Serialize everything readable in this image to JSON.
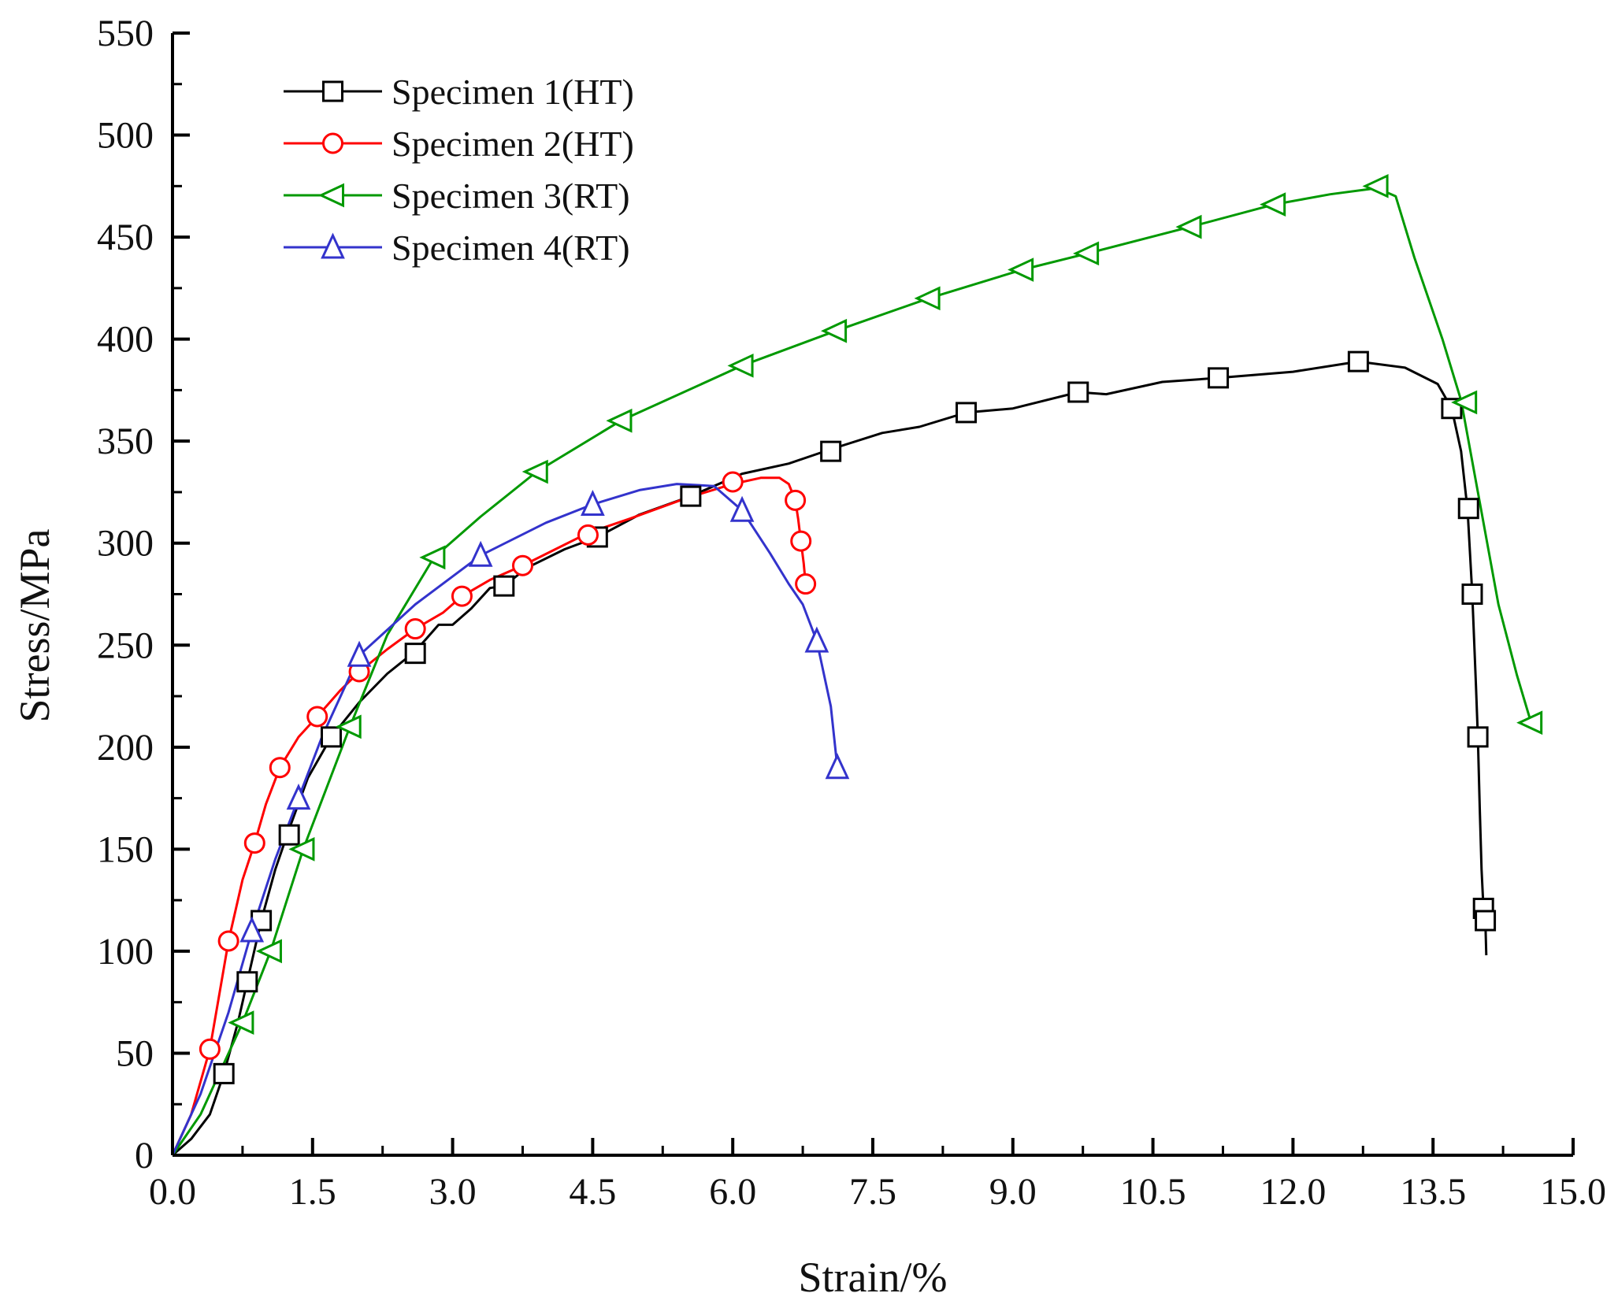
{
  "chart_data": {
    "type": "line",
    "title": "",
    "xlabel": "Strain/%",
    "ylabel": "Stress/MPa",
    "xlim": [
      0,
      15
    ],
    "ylim": [
      0,
      550
    ],
    "x_ticks": [
      "0.0",
      "1.5",
      "3.0",
      "4.5",
      "6.0",
      "7.5",
      "9.0",
      "10.5",
      "12.0",
      "13.5",
      "15.0"
    ],
    "y_ticks": [
      "0",
      "50",
      "100",
      "150",
      "200",
      "250",
      "300",
      "350",
      "400",
      "450",
      "500",
      "550"
    ],
    "grid": false,
    "legend_position": "top-left",
    "series": [
      {
        "name": "Specimen 1(HT)",
        "color": "#000000",
        "marker": "square",
        "curve": [
          [
            0.0,
            0
          ],
          [
            0.2,
            8
          ],
          [
            0.4,
            20
          ],
          [
            0.55,
            40
          ],
          [
            0.7,
            65
          ],
          [
            0.8,
            85
          ],
          [
            0.95,
            115
          ],
          [
            1.1,
            140
          ],
          [
            1.25,
            160
          ],
          [
            1.45,
            185
          ],
          [
            1.7,
            205
          ],
          [
            2.0,
            222
          ],
          [
            2.3,
            236
          ],
          [
            2.6,
            247
          ],
          [
            2.85,
            260
          ],
          [
            3.0,
            260
          ],
          [
            3.2,
            268
          ],
          [
            3.4,
            278
          ],
          [
            3.55,
            279
          ],
          [
            3.8,
            288
          ],
          [
            4.2,
            297
          ],
          [
            4.55,
            303
          ],
          [
            5.0,
            314
          ],
          [
            5.55,
            323
          ],
          [
            6.1,
            334
          ],
          [
            6.6,
            339
          ],
          [
            7.05,
            346
          ],
          [
            7.6,
            354
          ],
          [
            8.0,
            357
          ],
          [
            8.5,
            364
          ],
          [
            9.0,
            366
          ],
          [
            9.7,
            374
          ],
          [
            10.0,
            373
          ],
          [
            10.6,
            379
          ],
          [
            11.2,
            381
          ],
          [
            12.0,
            384
          ],
          [
            12.7,
            389
          ],
          [
            13.2,
            386
          ],
          [
            13.55,
            378
          ],
          [
            13.7,
            366
          ],
          [
            13.8,
            345
          ],
          [
            13.87,
            316
          ],
          [
            13.92,
            275
          ],
          [
            13.96,
            230
          ],
          [
            13.98,
            205
          ],
          [
            14.0,
            170
          ],
          [
            14.02,
            140
          ],
          [
            14.04,
            121
          ],
          [
            14.06,
            115
          ],
          [
            14.07,
            98
          ]
        ],
        "markers": [
          [
            0.55,
            40
          ],
          [
            0.8,
            85
          ],
          [
            0.95,
            115
          ],
          [
            1.25,
            157
          ],
          [
            1.7,
            205
          ],
          [
            2.6,
            246
          ],
          [
            3.55,
            279
          ],
          [
            4.55,
            303
          ],
          [
            5.55,
            323
          ],
          [
            7.05,
            345
          ],
          [
            8.5,
            364
          ],
          [
            9.7,
            374
          ],
          [
            11.2,
            381
          ],
          [
            12.7,
            389
          ],
          [
            13.7,
            366
          ],
          [
            13.88,
            317
          ],
          [
            13.92,
            275
          ],
          [
            13.98,
            205
          ],
          [
            14.04,
            121
          ],
          [
            14.06,
            115
          ]
        ]
      },
      {
        "name": "Specimen 2(HT)",
        "color": "#ff0000",
        "marker": "circle",
        "curve": [
          [
            0.0,
            0
          ],
          [
            0.2,
            20
          ],
          [
            0.4,
            52
          ],
          [
            0.6,
            105
          ],
          [
            0.75,
            135
          ],
          [
            0.88,
            153
          ],
          [
            1.0,
            172
          ],
          [
            1.15,
            190
          ],
          [
            1.35,
            205
          ],
          [
            1.55,
            215
          ],
          [
            1.8,
            228
          ],
          [
            2.0,
            237
          ],
          [
            2.3,
            248
          ],
          [
            2.6,
            258
          ],
          [
            2.9,
            266
          ],
          [
            3.1,
            274
          ],
          [
            3.4,
            282
          ],
          [
            3.75,
            289
          ],
          [
            4.1,
            297
          ],
          [
            4.45,
            305
          ],
          [
            4.9,
            312
          ],
          [
            5.5,
            322
          ],
          [
            6.0,
            329
          ],
          [
            6.3,
            332
          ],
          [
            6.5,
            332
          ],
          [
            6.6,
            329
          ],
          [
            6.67,
            321
          ],
          [
            6.7,
            312
          ],
          [
            6.73,
            301
          ],
          [
            6.76,
            290
          ],
          [
            6.78,
            280
          ]
        ],
        "markers": [
          [
            0.4,
            52
          ],
          [
            0.6,
            105
          ],
          [
            0.88,
            153
          ],
          [
            1.15,
            190
          ],
          [
            1.55,
            215
          ],
          [
            2.0,
            237
          ],
          [
            2.6,
            258
          ],
          [
            3.1,
            274
          ],
          [
            3.75,
            289
          ],
          [
            4.45,
            304
          ],
          [
            6.0,
            330
          ],
          [
            6.67,
            321
          ],
          [
            6.73,
            301
          ],
          [
            6.78,
            280
          ]
        ]
      },
      {
        "name": "Specimen 3(RT)",
        "color": "#009900",
        "marker": "triangle-left",
        "curve": [
          [
            0.0,
            0
          ],
          [
            0.3,
            20
          ],
          [
            0.5,
            40
          ],
          [
            0.75,
            65
          ],
          [
            1.05,
            100
          ],
          [
            1.4,
            150
          ],
          [
            1.9,
            210
          ],
          [
            2.3,
            255
          ],
          [
            2.8,
            293
          ],
          [
            3.3,
            313
          ],
          [
            3.9,
            335
          ],
          [
            4.8,
            360
          ],
          [
            6.1,
            387
          ],
          [
            7.1,
            404
          ],
          [
            8.1,
            420
          ],
          [
            9.1,
            434
          ],
          [
            9.8,
            442
          ],
          [
            10.9,
            455
          ],
          [
            11.8,
            466
          ],
          [
            12.4,
            471
          ],
          [
            12.9,
            474
          ],
          [
            13.1,
            470
          ],
          [
            13.3,
            440
          ],
          [
            13.6,
            400
          ],
          [
            13.8,
            370
          ],
          [
            14.0,
            320
          ],
          [
            14.2,
            270
          ],
          [
            14.4,
            235
          ],
          [
            14.55,
            212
          ]
        ],
        "markers": [
          [
            0.75,
            65
          ],
          [
            1.05,
            100
          ],
          [
            1.4,
            150
          ],
          [
            1.9,
            210
          ],
          [
            2.8,
            293
          ],
          [
            3.9,
            335
          ],
          [
            4.8,
            360
          ],
          [
            6.1,
            387
          ],
          [
            7.1,
            404
          ],
          [
            8.1,
            420
          ],
          [
            9.1,
            434
          ],
          [
            9.8,
            442
          ],
          [
            10.9,
            455
          ],
          [
            11.8,
            466
          ],
          [
            12.9,
            475
          ],
          [
            13.85,
            369
          ],
          [
            14.55,
            212
          ]
        ]
      },
      {
        "name": "Specimen 4(RT)",
        "color": "#3333cc",
        "marker": "triangle-up",
        "curve": [
          [
            0.0,
            0
          ],
          [
            0.3,
            30
          ],
          [
            0.6,
            70
          ],
          [
            0.85,
            110
          ],
          [
            1.1,
            145
          ],
          [
            1.35,
            175
          ],
          [
            1.6,
            205
          ],
          [
            2.0,
            245
          ],
          [
            2.6,
            270
          ],
          [
            3.3,
            294
          ],
          [
            4.0,
            310
          ],
          [
            4.5,
            319
          ],
          [
            5.0,
            326
          ],
          [
            5.4,
            329
          ],
          [
            5.8,
            328
          ],
          [
            6.1,
            316
          ],
          [
            6.4,
            295
          ],
          [
            6.6,
            280
          ],
          [
            6.75,
            270
          ],
          [
            6.9,
            252
          ],
          [
            7.05,
            220
          ],
          [
            7.12,
            190
          ]
        ],
        "markers": [
          [
            0.85,
            110
          ],
          [
            1.35,
            175
          ],
          [
            2.0,
            245
          ],
          [
            3.3,
            294
          ],
          [
            4.5,
            319
          ],
          [
            6.1,
            316
          ],
          [
            6.9,
            252
          ],
          [
            7.12,
            190
          ]
        ]
      }
    ]
  }
}
